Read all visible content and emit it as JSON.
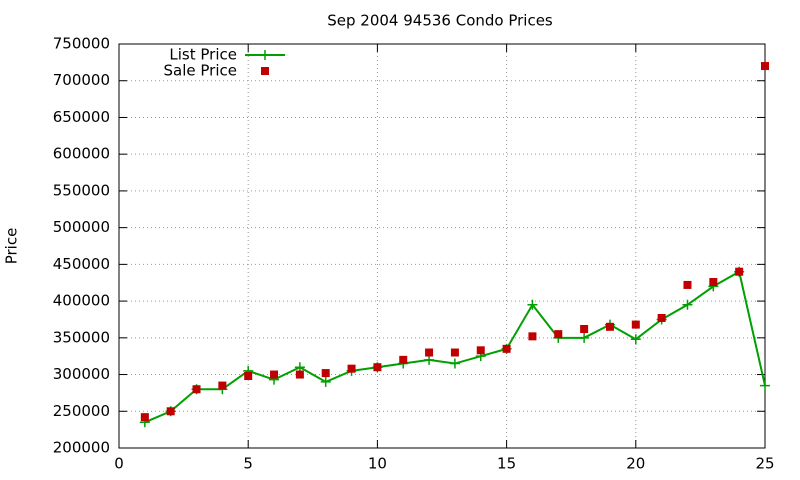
{
  "chart_data": {
    "type": "line",
    "title": "Sep 2004 94536 Condo Prices",
    "y_label": "Price",
    "x": [
      1,
      2,
      3,
      4,
      5,
      6,
      7,
      8,
      9,
      10,
      11,
      12,
      13,
      14,
      15,
      16,
      17,
      18,
      19,
      20,
      21,
      22,
      23,
      24,
      25
    ],
    "series": [
      {
        "name": "List Price",
        "color": "#00a000",
        "line": true,
        "marker": "plus",
        "values": [
          235000,
          250000,
          280000,
          280000,
          305000,
          293000,
          310000,
          290000,
          305000,
          310000,
          315000,
          320000,
          315000,
          325000,
          335000,
          395000,
          350000,
          350000,
          368000,
          348000,
          375000,
          395000,
          420000,
          440000,
          285000
        ]
      },
      {
        "name": "Sale Price",
        "color": "#c00000",
        "line": false,
        "marker": "square",
        "values": [
          242000,
          250000,
          280000,
          285000,
          298000,
          300000,
          300000,
          302000,
          308000,
          310000,
          320000,
          330000,
          330000,
          333000,
          335000,
          352000,
          355000,
          362000,
          365000,
          368000,
          377000,
          422000,
          426000,
          440000,
          720000
        ]
      }
    ],
    "xlim": [
      0,
      25
    ],
    "xticks": [
      0,
      5,
      10,
      15,
      20,
      25
    ],
    "ylim": [
      200000,
      750000
    ],
    "yticks": [
      200000,
      250000,
      300000,
      350000,
      400000,
      450000,
      500000,
      550000,
      600000,
      650000,
      700000,
      750000
    ],
    "grid": true,
    "legend": "top-left"
  }
}
